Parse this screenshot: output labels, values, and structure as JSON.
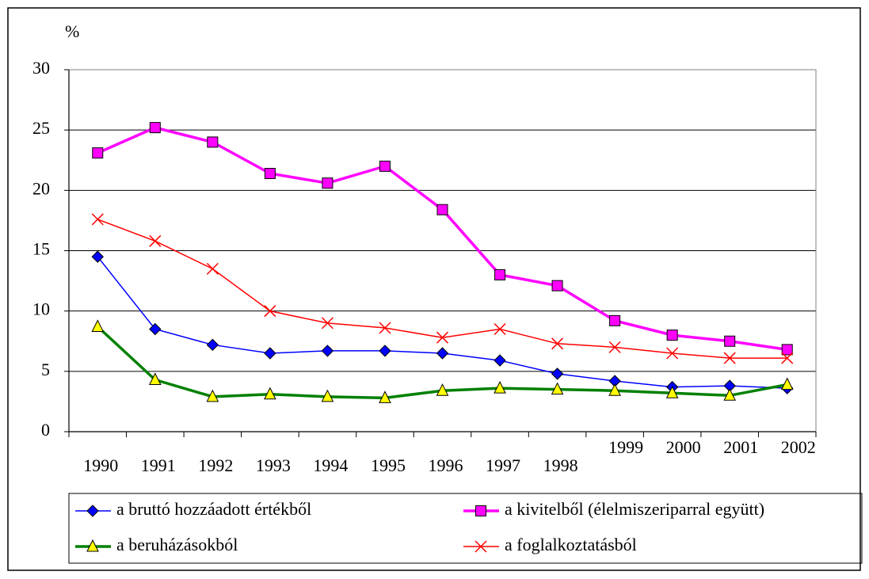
{
  "chart_data": {
    "type": "line",
    "y_label": "%",
    "categories": [
      "1990",
      "1991",
      "1992",
      "1993",
      "1994",
      "1995",
      "1996",
      "1997",
      "1998",
      "1999",
      "2000",
      "2001",
      "2002"
    ],
    "series": [
      {
        "name": "a bruttó hozzáadott értékből",
        "color": "#0000ff",
        "marker": "diamond",
        "marker_fill": "#0000ff",
        "line_width": 1.5,
        "values": [
          14.5,
          8.5,
          7.2,
          6.5,
          6.7,
          6.7,
          6.5,
          5.9,
          4.8,
          4.2,
          3.7,
          3.8,
          3.6
        ]
      },
      {
        "name": "a kivitelből (élelmiszeriparral együtt)",
        "color": "#ff00ff",
        "marker": "square",
        "marker_fill": "#ff00ff",
        "line_width": 3.5,
        "values": [
          23.1,
          25.2,
          24.0,
          21.4,
          20.6,
          22.0,
          18.4,
          13.0,
          12.1,
          9.2,
          8.0,
          7.5,
          6.8
        ]
      },
      {
        "name": "a beruházásokból",
        "color": "#008000",
        "marker": "triangle",
        "marker_fill": "#ffff00",
        "line_width": 3.5,
        "values": [
          8.7,
          4.3,
          2.9,
          3.1,
          2.9,
          2.8,
          3.4,
          3.6,
          3.5,
          3.4,
          3.2,
          3.0,
          3.9
        ]
      },
      {
        "name": "a foglalkoztatásból",
        "color": "#ff0000",
        "marker": "x",
        "marker_fill": "#ff0000",
        "line_width": 1.5,
        "values": [
          17.6,
          15.8,
          13.5,
          10.0,
          9.0,
          8.6,
          7.8,
          8.5,
          7.3,
          7.0,
          6.5,
          6.1,
          6.1
        ]
      }
    ],
    "ylim": [
      0,
      30
    ],
    "yticks": [
      0,
      5,
      10,
      15,
      20,
      25,
      30
    ],
    "grid": true,
    "legend": "bottom"
  }
}
